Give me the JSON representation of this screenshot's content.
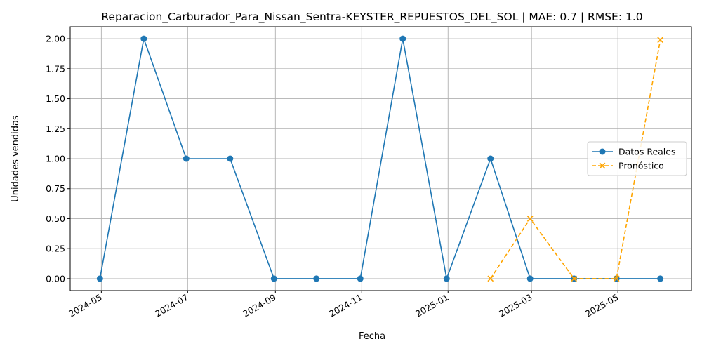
{
  "chart_data": {
    "type": "line",
    "title": "Reparacion_Carburador_Para_Nissan_Sentra-KEYSTER_REPUESTOS_DEL_SOL | MAE: 0.7 | RMSE: 1.0",
    "xlabel": "Fecha",
    "ylabel": "Unidades vendidas",
    "xlim": [
      "2024-04-09",
      "2025-06-22"
    ],
    "ylim": [
      -0.1,
      2.1
    ],
    "grid": true,
    "legend_position": "center-right",
    "x_ticks": [
      "2024-05",
      "2024-07",
      "2024-09",
      "2024-11",
      "2025-01",
      "2025-03",
      "2025-05"
    ],
    "y_ticks": [
      "0.00",
      "0.25",
      "0.50",
      "0.75",
      "1.00",
      "1.25",
      "1.50",
      "1.75",
      "2.00"
    ],
    "series": [
      {
        "name": "Datos Reales",
        "color": "#1f77b4",
        "marker": "circle",
        "style": "solid",
        "x": [
          "2024-04-30",
          "2024-05-31",
          "2024-06-30",
          "2024-07-31",
          "2024-08-31",
          "2024-09-30",
          "2024-10-31",
          "2024-11-30",
          "2024-12-31",
          "2025-01-31",
          "2025-02-28",
          "2025-03-31",
          "2025-04-30",
          "2025-05-31"
        ],
        "values": [
          0,
          2,
          1,
          1,
          0,
          0,
          0,
          2,
          0,
          1,
          0,
          0,
          0,
          0
        ]
      },
      {
        "name": "Pronóstico",
        "color": "#ffa500",
        "marker": "x",
        "style": "dashed",
        "x": [
          "2025-01-31",
          "2025-02-28",
          "2025-03-31",
          "2025-04-30",
          "2025-05-31"
        ],
        "values": [
          0,
          0.5,
          0,
          0,
          1.99
        ]
      }
    ]
  }
}
